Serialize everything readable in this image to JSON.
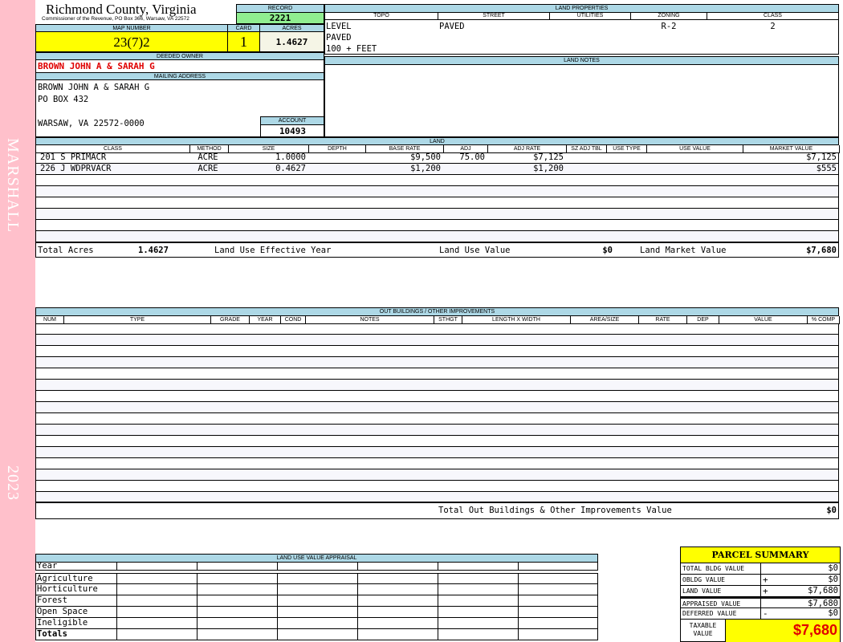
{
  "sidebar": {
    "owner_tag": "MARSHALL",
    "year": "2023",
    "color": "#ffc0cb"
  },
  "header": {
    "title": "Richmond County, Virginia",
    "subtitle": "Commissioner of the Revenue, PO Box 366, Warsaw, VA 22572",
    "record_label": "RECORD",
    "record": "2221",
    "map_label": "MAP NUMBER",
    "map": "23(7)2",
    "card_label": "CARD",
    "card": "1",
    "acres_label": "ACRES",
    "acres": "1.4627"
  },
  "owner": {
    "label": "DEEDED OWNER",
    "name": "BROWN JOHN A & SARAH G",
    "mailing_label": "MAILING ADDRESS",
    "address": [
      "BROWN JOHN A & SARAH G",
      "PO BOX 432",
      "WARSAW, VA 22572-0000"
    ],
    "account_label": "ACCOUNT",
    "account": "10493"
  },
  "land_properties": {
    "label": "LAND PROPERTIES",
    "columns": [
      "TOPO",
      "STREET",
      "UTILITIES",
      "ZONING",
      "CLASS"
    ],
    "topo": [
      "LEVEL",
      "PAVED",
      "100 + FEET"
    ],
    "street": "PAVED",
    "utilities": "",
    "zoning": "R-2",
    "class": "2"
  },
  "land_notes": {
    "label": "LAND NOTES"
  },
  "land": {
    "label": "LAND",
    "columns": [
      "CLASS",
      "METHOD",
      "SIZE",
      "DEPTH",
      "BASE RATE",
      "ADJ",
      "ADJ RATE",
      "SZ ADJ TBL",
      "USE TYPE",
      "USE VALUE",
      "MARKET VALUE"
    ],
    "rows": [
      [
        "201 S PRIMACR",
        "ACRE",
        "1.0000",
        "",
        "$9,500",
        "75.00",
        "$7,125",
        "",
        "",
        "",
        "$7,125"
      ],
      [
        "226 J WDPRVACR",
        "ACRE",
        "0.4627",
        "",
        "$1,200",
        "",
        "$1,200",
        "",
        "",
        "",
        "$555"
      ]
    ],
    "totals": {
      "acres_label": "Total Acres",
      "acres": "1.4627",
      "eff_year_label": "Land Use Effective Year",
      "eff_year": "",
      "use_value_label": "Land Use Value",
      "use_value": "$0",
      "market_label": "Land Market Value",
      "market": "$7,680"
    }
  },
  "outbuildings": {
    "label": "OUT BUILDINGS / OTHER IMPROVEMENTS",
    "columns": [
      "NUM",
      "TYPE",
      "GRADE",
      "YEAR",
      "COND",
      "NOTES",
      "STHGT",
      "LENGTH X WIDTH",
      "AREA/SIZE",
      "RATE",
      "DEP",
      "VALUE",
      "% COMP"
    ],
    "total_label": "Total Out Buildings & Other Improvements Value",
    "total": "$0"
  },
  "land_use": {
    "label": "LAND USE VALUE APPRAISAL",
    "rows": [
      "Year",
      "Agriculture",
      "Horticulture",
      "Forest",
      "Open Space",
      "Ineligible",
      "Totals"
    ]
  },
  "summary": {
    "title": "PARCEL SUMMARY",
    "rows": [
      {
        "label": "TOTAL BLDG VALUE",
        "op": "",
        "value": "$0"
      },
      {
        "label": "OBLDG VALUE",
        "op": "+",
        "value": "$0"
      },
      {
        "label": "LAND VALUE",
        "op": "+",
        "value": "$7,680"
      },
      {
        "label": "APPRAISED VALUE",
        "op": "",
        "value": "$7,680"
      },
      {
        "label": "DEFERRED VALUE",
        "op": "-",
        "value": "$0"
      }
    ],
    "taxable_label": "TAXABLE VALUE",
    "taxable": "$7,680"
  }
}
